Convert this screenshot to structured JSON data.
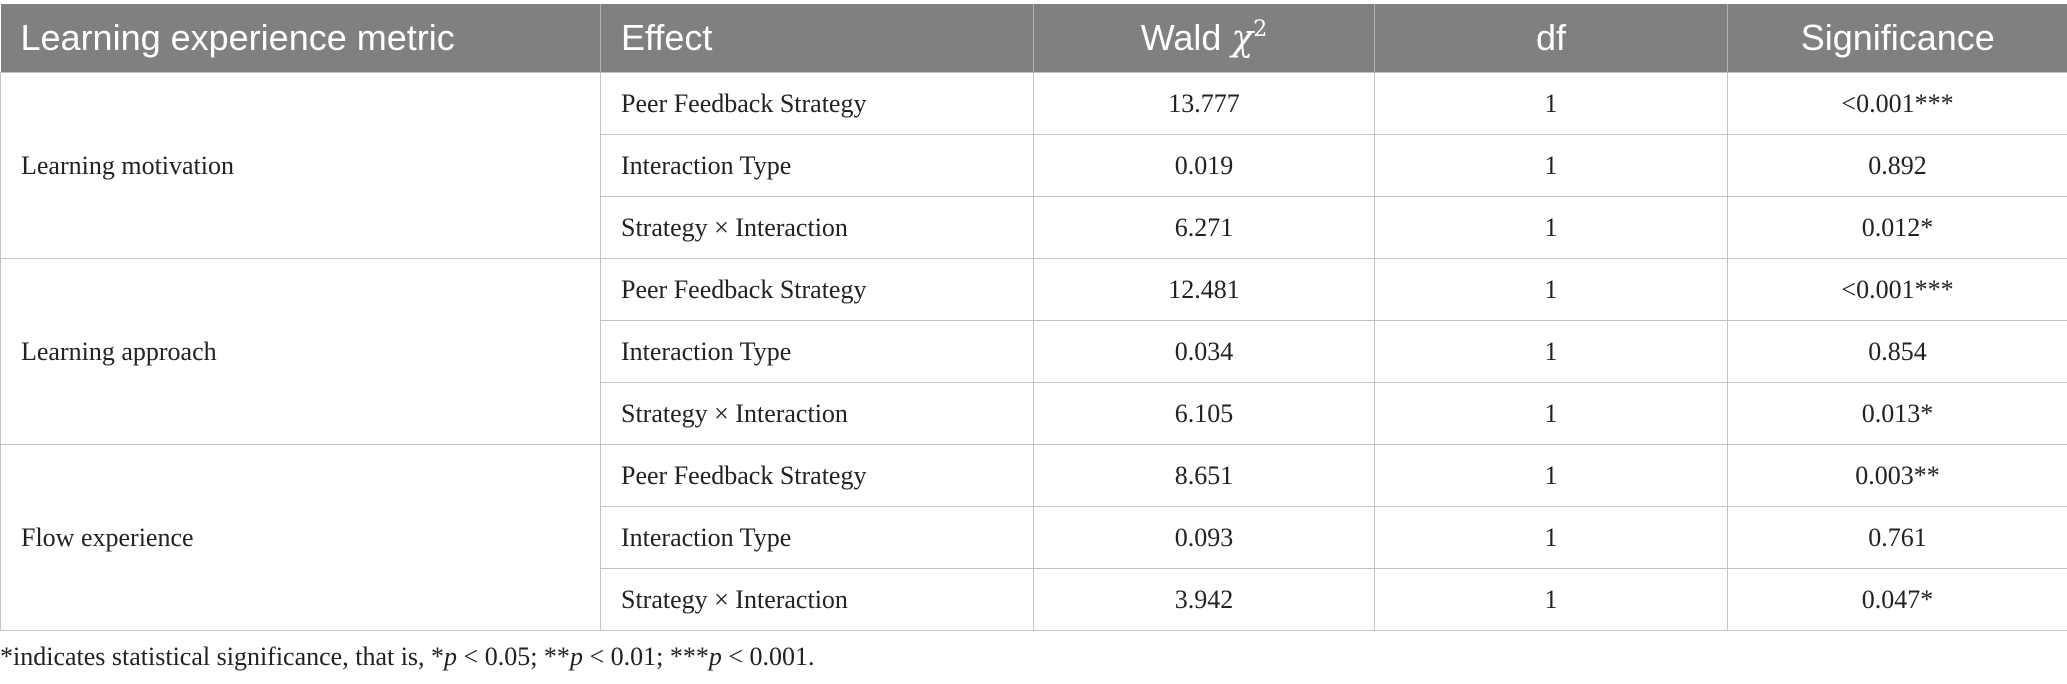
{
  "table": {
    "headers": {
      "metric": "Learning experience metric",
      "effect": "Effect",
      "wald_label": "Wald ",
      "wald_symbol": "χ",
      "wald_exponent": "2",
      "df": "df",
      "significance": "Significance"
    },
    "groups": [
      {
        "metric": "Learning motivation",
        "rows": [
          {
            "effect": "Peer Feedback Strategy",
            "wald": "13.777",
            "df": "1",
            "significance": "<0.001***"
          },
          {
            "effect": "Interaction Type",
            "wald": "0.019",
            "df": "1",
            "significance": "0.892"
          },
          {
            "effect": "Strategy × Interaction",
            "wald": "6.271",
            "df": "1",
            "significance": "0.012*"
          }
        ]
      },
      {
        "metric": "Learning approach",
        "rows": [
          {
            "effect": "Peer Feedback Strategy",
            "wald": "12.481",
            "df": "1",
            "significance": "<0.001***"
          },
          {
            "effect": "Interaction Type",
            "wald": "0.034",
            "df": "1",
            "significance": "0.854"
          },
          {
            "effect": "Strategy × Interaction",
            "wald": "6.105",
            "df": "1",
            "significance": "0.013*"
          }
        ]
      },
      {
        "metric": "Flow experience",
        "rows": [
          {
            "effect": "Peer Feedback Strategy",
            "wald": "8.651",
            "df": "1",
            "significance": "0.003**"
          },
          {
            "effect": "Interaction Type",
            "wald": "0.093",
            "df": "1",
            "significance": "0.761"
          },
          {
            "effect": "Strategy × Interaction",
            "wald": "3.942",
            "df": "1",
            "significance": "0.047*"
          }
        ]
      }
    ]
  },
  "footnote": {
    "intro": "*indicates statistical significance, that is, *",
    "p1": "p",
    "t1": " < 0.05; **",
    "p2": "p",
    "t2": " < 0.01; ***",
    "p3": "p",
    "t3": " < 0.001."
  }
}
